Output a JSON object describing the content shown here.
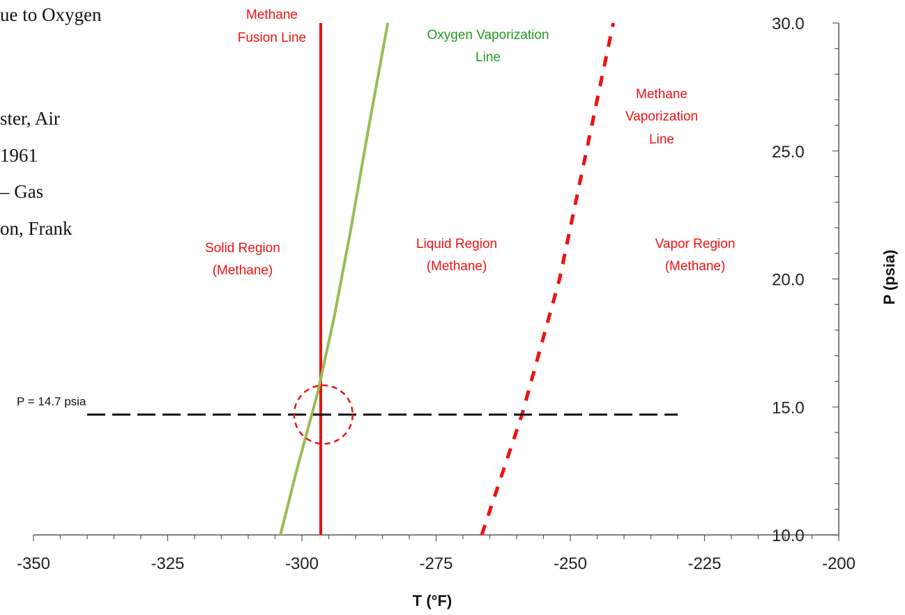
{
  "background_text": {
    "line1": "ue to Oxygen",
    "line2": "ster, Air",
    "line3": " 1961",
    "line4": " – Gas",
    "line5": "on, Frank"
  },
  "chart_data": {
    "type": "line",
    "xlabel": "T (°F)",
    "ylabel": "P (psia)",
    "xlim": [
      -350,
      -200
    ],
    "ylim": [
      10,
      30
    ],
    "x_ticks": [
      "-350",
      "-325",
      "-300",
      "-275",
      "-250",
      "-225",
      "-200"
    ],
    "y_ticks": [
      "10.0",
      "15.0",
      "20.0",
      "25.0",
      "30.0"
    ],
    "grid": false,
    "y_axis_position": "right",
    "series": [
      {
        "name": "Methane Fusion Line",
        "color": "#ee1111",
        "style": "solid",
        "x": [
          -296.5,
          -296.5
        ],
        "y": [
          10,
          30
        ]
      },
      {
        "name": "Oxygen Vaporization Line",
        "color": "#99bb55",
        "style": "solid",
        "x": [
          -304,
          -301,
          -297,
          -294,
          -291,
          -287.5,
          -284
        ],
        "y": [
          10,
          12.5,
          15.6,
          18.5,
          21.8,
          26,
          30
        ]
      },
      {
        "name": "Methane Vaporization Line",
        "color": "#ee1111",
        "style": "dashed",
        "x": [
          -266.5,
          -259,
          -252,
          -247,
          -242
        ],
        "y": [
          10,
          14.7,
          20,
          25,
          30
        ]
      },
      {
        "name": "P = 14.7 psia",
        "color": "#111111",
        "style": "dashed",
        "x": [
          -340,
          -230
        ],
        "y": [
          14.7,
          14.7
        ]
      }
    ],
    "highlight_circle": {
      "color": "#ee1111",
      "x": -296,
      "y": 14.7
    },
    "annotations": {
      "methane_fusion": [
        "Methane",
        "Fusion Line"
      ],
      "oxygen_vaporization": [
        "Oxygen Vaporization",
        "Line"
      ],
      "methane_vaporization": [
        "Methane",
        "Vaporization",
        "Line"
      ],
      "solid_region": [
        "Solid Region",
        "(Methane)"
      ],
      "liquid_region": [
        "Liquid Region",
        "(Methane)"
      ],
      "vapor_region": [
        "Vapor Region",
        "(Methane)"
      ],
      "pressure_line": "P = 14.7 psia"
    }
  }
}
